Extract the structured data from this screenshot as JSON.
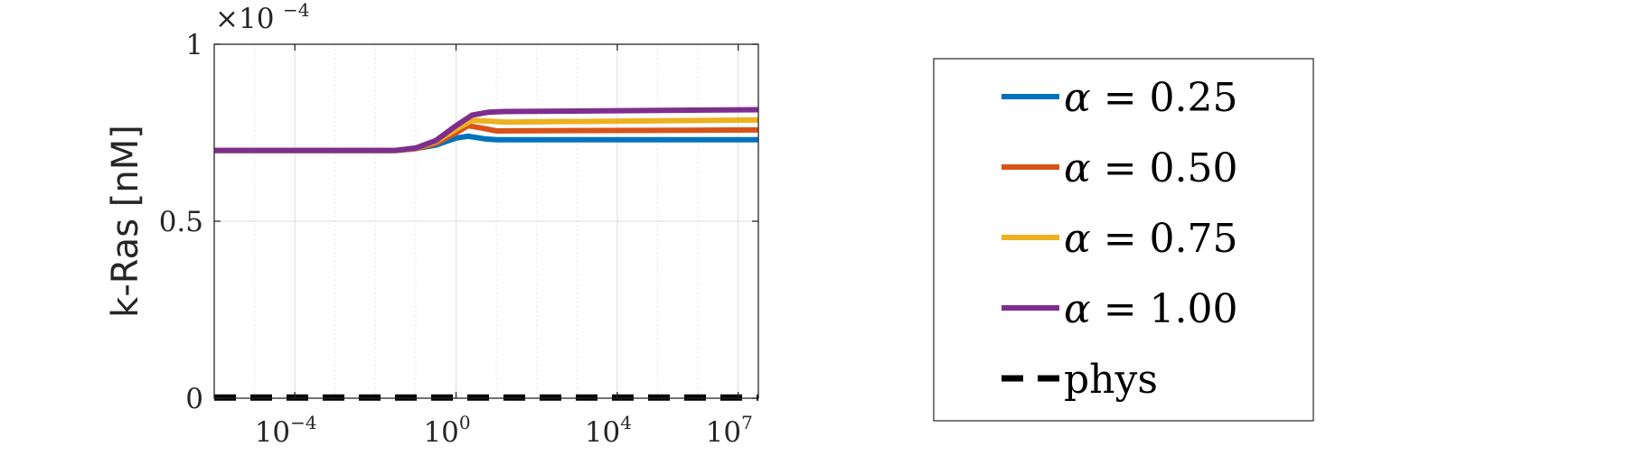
{
  "chart_data": {
    "type": "line",
    "title": "",
    "xlabel": "",
    "ylabel": "k-Ras [nM]",
    "x_scale": "log",
    "x_range_log10": [
      -6,
      7.5
    ],
    "x_ticks": [
      {
        "exp": -4,
        "base": "10",
        "sup": "−4"
      },
      {
        "exp": 0,
        "base": "10",
        "sup": "0"
      },
      {
        "exp": 4,
        "base": "10",
        "sup": "4"
      },
      {
        "exp": 7,
        "base": "10",
        "sup": "7"
      }
    ],
    "y_range": [
      0,
      1
    ],
    "y_ticks": [
      {
        "value": 0,
        "label": "0"
      },
      {
        "value": 0.5,
        "label": "0.5"
      },
      {
        "value": 1,
        "label": "1"
      }
    ],
    "y_multiplier": {
      "base": "×10",
      "sup": "−4"
    },
    "grid": true,
    "legend_position": "right",
    "series": [
      {
        "name": "α = 0.25",
        "label_lhs": "α",
        "label_rhs": " = 0.25",
        "color": "#0072BD",
        "style": "solid",
        "points": [
          [
            -6,
            0.7
          ],
          [
            -1.5,
            0.7
          ],
          [
            -1,
            0.705
          ],
          [
            -0.5,
            0.715
          ],
          [
            0,
            0.735
          ],
          [
            0.3,
            0.74
          ],
          [
            0.7,
            0.733
          ],
          [
            1,
            0.73
          ],
          [
            7.5,
            0.73
          ]
        ]
      },
      {
        "name": "α = 0.50",
        "label_lhs": "α",
        "label_rhs": " = 0.50",
        "color": "#D95319",
        "style": "solid",
        "points": [
          [
            -6,
            0.7
          ],
          [
            -1.5,
            0.7
          ],
          [
            -1,
            0.705
          ],
          [
            -0.5,
            0.72
          ],
          [
            0,
            0.75
          ],
          [
            0.3,
            0.77
          ],
          [
            0.7,
            0.762
          ],
          [
            1,
            0.755
          ],
          [
            7.5,
            0.758
          ]
        ]
      },
      {
        "name": "α = 0.75",
        "label_lhs": "α",
        "label_rhs": " = 0.75",
        "color": "#EDB120",
        "style": "solid",
        "points": [
          [
            -6,
            0.7
          ],
          [
            -1.5,
            0.7
          ],
          [
            -1,
            0.706
          ],
          [
            -0.5,
            0.725
          ],
          [
            0,
            0.76
          ],
          [
            0.4,
            0.785
          ],
          [
            0.8,
            0.783
          ],
          [
            1.2,
            0.78
          ],
          [
            7.5,
            0.786
          ]
        ]
      },
      {
        "name": "α = 1.00",
        "label_lhs": "α",
        "label_rhs": " = 1.00",
        "color": "#7E2F8E",
        "style": "solid",
        "points": [
          [
            -6,
            0.7
          ],
          [
            -1.5,
            0.7
          ],
          [
            -1,
            0.707
          ],
          [
            -0.5,
            0.728
          ],
          [
            0,
            0.77
          ],
          [
            0.4,
            0.8
          ],
          [
            0.8,
            0.808
          ],
          [
            1.2,
            0.81
          ],
          [
            7.5,
            0.815
          ]
        ]
      },
      {
        "name": "phys",
        "label_lhs": "",
        "label_rhs": "phys",
        "color": "#000000",
        "style": "dashed",
        "points": [
          [
            -6,
            0.002
          ],
          [
            7.5,
            0.002
          ]
        ]
      }
    ]
  }
}
